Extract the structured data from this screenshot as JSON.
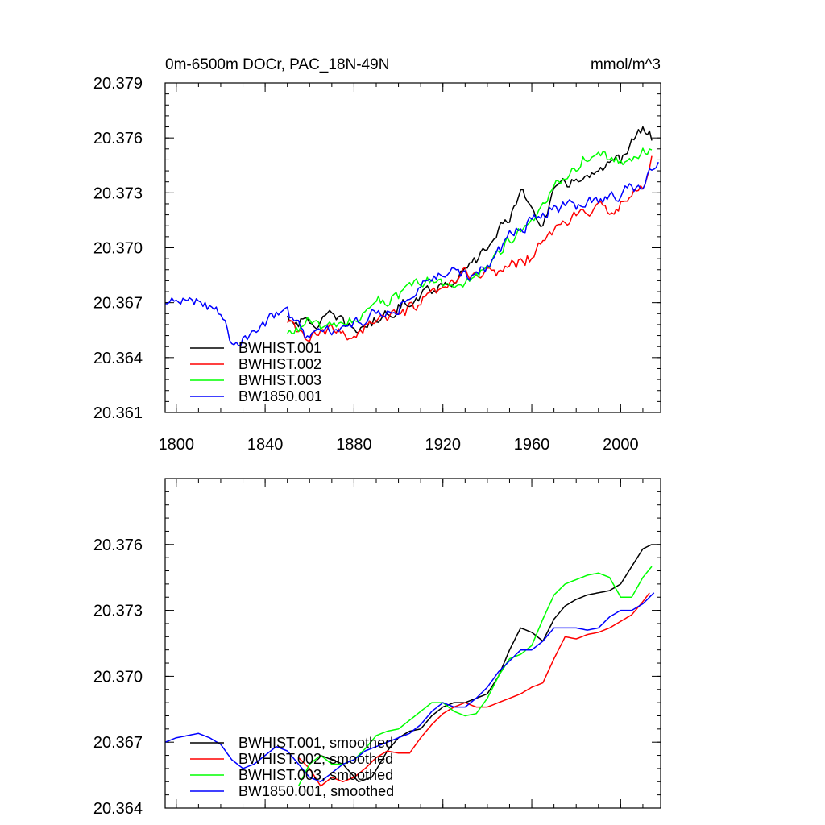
{
  "chart_data": [
    {
      "type": "line",
      "title_left": "0m-6500m DOCr, PAC_18N-49N",
      "title_right": "mmol/m^3",
      "xlim": [
        1795,
        2018
      ],
      "ylim": [
        20.361,
        20.379
      ],
      "x_ticks": [
        1800,
        1840,
        1880,
        1920,
        1960,
        2000
      ],
      "x_tick_labels": [
        "1800",
        "1840",
        "1880",
        "1920",
        "1960",
        "2000"
      ],
      "y_ticks": [
        20.361,
        20.364,
        20.367,
        20.37,
        20.373,
        20.376,
        20.379
      ],
      "y_tick_labels": [
        "20.361",
        "20.364",
        "20.367",
        "20.370",
        "20.373",
        "20.376",
        "20.379"
      ],
      "legend": [
        "BWHIST.001",
        "BWHIST.002",
        "BWHIST.003",
        "BW1850.001"
      ],
      "legend_position": "bottom-left",
      "series": [
        {
          "name": "BWHIST.001",
          "color": "#000000",
          "noise": 0.00055,
          "points": [
            [
              1850,
              20.3662
            ],
            [
              1860,
              20.3658
            ],
            [
              1870,
              20.3662
            ],
            [
              1880,
              20.3655
            ],
            [
              1890,
              20.366
            ],
            [
              1900,
              20.3668
            ],
            [
              1910,
              20.3675
            ],
            [
              1920,
              20.368
            ],
            [
              1930,
              20.3686
            ],
            [
              1940,
              20.37
            ],
            [
              1950,
              20.3718
            ],
            [
              1955,
              20.3728
            ],
            [
              1960,
              20.3725
            ],
            [
              1965,
              20.3712
            ],
            [
              1970,
              20.373
            ],
            [
              1980,
              20.3738
            ],
            [
              1990,
              20.374
            ],
            [
              2000,
              20.3748
            ],
            [
              2005,
              20.3758
            ],
            [
              2010,
              20.3765
            ],
            [
              2014,
              20.376
            ]
          ]
        },
        {
          "name": "BWHIST.002",
          "color": "#ff0000",
          "noise": 0.00055,
          "points": [
            [
              1850,
              20.3658
            ],
            [
              1860,
              20.365
            ],
            [
              1870,
              20.3655
            ],
            [
              1880,
              20.3652
            ],
            [
              1890,
              20.3662
            ],
            [
              1900,
              20.3662
            ],
            [
              1910,
              20.367
            ],
            [
              1920,
              20.3676
            ],
            [
              1930,
              20.3686
            ],
            [
              1940,
              20.3685
            ],
            [
              1950,
              20.369
            ],
            [
              1960,
              20.3695
            ],
            [
              1970,
              20.371
            ],
            [
              1980,
              20.3718
            ],
            [
              1990,
              20.372
            ],
            [
              2000,
              20.3724
            ],
            [
              2010,
              20.3732
            ],
            [
              2014,
              20.375
            ]
          ]
        },
        {
          "name": "BWHIST.003",
          "color": "#00ff00",
          "noise": 0.00055,
          "points": [
            [
              1850,
              20.3652
            ],
            [
              1860,
              20.366
            ],
            [
              1870,
              20.3655
            ],
            [
              1880,
              20.366
            ],
            [
              1890,
              20.3672
            ],
            [
              1900,
              20.3672
            ],
            [
              1910,
              20.3682
            ],
            [
              1920,
              20.368
            ],
            [
              1930,
              20.368
            ],
            [
              1940,
              20.369
            ],
            [
              1950,
              20.3705
            ],
            [
              1960,
              20.3712
            ],
            [
              1970,
              20.3735
            ],
            [
              1980,
              20.3745
            ],
            [
              1990,
              20.3755
            ],
            [
              2000,
              20.3745
            ],
            [
              2010,
              20.3752
            ],
            [
              2014,
              20.3755
            ]
          ]
        },
        {
          "name": "BW1850.001",
          "color": "#0000ff",
          "noise": 0.00055,
          "points": [
            [
              1795,
              20.3668
            ],
            [
              1800,
              20.367
            ],
            [
              1810,
              20.3672
            ],
            [
              1820,
              20.3665
            ],
            [
              1825,
              20.3648
            ],
            [
              1830,
              20.365
            ],
            [
              1840,
              20.366
            ],
            [
              1850,
              20.3665
            ],
            [
              1860,
              20.365
            ],
            [
              1870,
              20.3655
            ],
            [
              1880,
              20.3658
            ],
            [
              1890,
              20.3665
            ],
            [
              1900,
              20.3668
            ],
            [
              1910,
              20.3678
            ],
            [
              1920,
              20.3688
            ],
            [
              1930,
              20.3684
            ],
            [
              1940,
              20.369
            ],
            [
              1950,
              20.3706
            ],
            [
              1960,
              20.3715
            ],
            [
              1970,
              20.3722
            ],
            [
              1980,
              20.3722
            ],
            [
              1990,
              20.3726
            ],
            [
              2000,
              20.373
            ],
            [
              2010,
              20.3733
            ],
            [
              2017,
              20.3748
            ]
          ]
        }
      ]
    },
    {
      "type": "line",
      "xlim": [
        1795,
        2018
      ],
      "ylim": [
        20.364,
        20.379
      ],
      "x_ticks": [
        1800,
        1840,
        1880,
        1920,
        1960,
        2000
      ],
      "y_ticks": [
        20.364,
        20.367,
        20.37,
        20.373,
        20.376
      ],
      "y_tick_labels": [
        "20.364",
        "20.367",
        "20.370",
        "20.373",
        "20.376"
      ],
      "legend": [
        "BWHIST.001, smoothed",
        "BWHIST.002, smoothed",
        "BWHIST.003, smoothed",
        "BW1850.001, smoothed"
      ],
      "legend_position": "bottom-left",
      "series": [
        {
          "name": "BWHIST.001, smoothed",
          "color": "#000000",
          "noise": 0,
          "points": [
            [
              1865,
              20.3664
            ],
            [
              1875,
              20.366
            ],
            [
              1882,
              20.3652
            ],
            [
              1888,
              20.3654
            ],
            [
              1895,
              20.3666
            ],
            [
              1900,
              20.3672
            ],
            [
              1905,
              20.3675
            ],
            [
              1910,
              20.3676
            ],
            [
              1915,
              20.3682
            ],
            [
              1920,
              20.3686
            ],
            [
              1925,
              20.3688
            ],
            [
              1930,
              20.3688
            ],
            [
              1935,
              20.369
            ],
            [
              1940,
              20.3692
            ],
            [
              1945,
              20.37
            ],
            [
              1950,
              20.3712
            ],
            [
              1955,
              20.3722
            ],
            [
              1960,
              20.372
            ],
            [
              1965,
              20.3716
            ],
            [
              1970,
              20.3726
            ],
            [
              1975,
              20.3732
            ],
            [
              1980,
              20.3735
            ],
            [
              1985,
              20.3737
            ],
            [
              1990,
              20.3738
            ],
            [
              1995,
              20.3739
            ],
            [
              2000,
              20.3742
            ],
            [
              2005,
              20.375
            ],
            [
              2010,
              20.3758
            ],
            [
              2014,
              20.376
            ]
          ]
        },
        {
          "name": "BWHIST.002, smoothed",
          "color": "#ff0000",
          "noise": 0,
          "points": [
            [
              1855,
              20.3663
            ],
            [
              1860,
              20.3658
            ],
            [
              1865,
              20.365
            ],
            [
              1870,
              20.3654
            ],
            [
              1875,
              20.3652
            ],
            [
              1880,
              20.3654
            ],
            [
              1885,
              20.3658
            ],
            [
              1890,
              20.3663
            ],
            [
              1895,
              20.3666
            ],
            [
              1900,
              20.3665
            ],
            [
              1905,
              20.3665
            ],
            [
              1910,
              20.3672
            ],
            [
              1915,
              20.3678
            ],
            [
              1920,
              20.3683
            ],
            [
              1925,
              20.3686
            ],
            [
              1930,
              20.3688
            ],
            [
              1935,
              20.3686
            ],
            [
              1940,
              20.3686
            ],
            [
              1945,
              20.3688
            ],
            [
              1950,
              20.369
            ],
            [
              1955,
              20.3692
            ],
            [
              1960,
              20.3695
            ],
            [
              1965,
              20.3697
            ],
            [
              1970,
              20.3708
            ],
            [
              1975,
              20.3718
            ],
            [
              1980,
              20.3717
            ],
            [
              1985,
              20.3719
            ],
            [
              1990,
              20.372
            ],
            [
              1995,
              20.3722
            ],
            [
              2000,
              20.3725
            ],
            [
              2005,
              20.3728
            ],
            [
              2010,
              20.3734
            ],
            [
              2013,
              20.3738
            ]
          ]
        },
        {
          "name": "BWHIST.003, smoothed",
          "color": "#00ff00",
          "noise": 0,
          "points": [
            [
              1855,
              20.365
            ],
            [
              1860,
              20.366
            ],
            [
              1865,
              20.3664
            ],
            [
              1870,
              20.366
            ],
            [
              1875,
              20.366
            ],
            [
              1880,
              20.3662
            ],
            [
              1885,
              20.3667
            ],
            [
              1890,
              20.3673
            ],
            [
              1895,
              20.3675
            ],
            [
              1900,
              20.3676
            ],
            [
              1905,
              20.368
            ],
            [
              1910,
              20.3684
            ],
            [
              1915,
              20.3688
            ],
            [
              1920,
              20.3688
            ],
            [
              1925,
              20.3684
            ],
            [
              1930,
              20.3682
            ],
            [
              1935,
              20.3683
            ],
            [
              1940,
              20.369
            ],
            [
              1945,
              20.37
            ],
            [
              1950,
              20.3708
            ],
            [
              1955,
              20.371
            ],
            [
              1960,
              20.3714
            ],
            [
              1965,
              20.3726
            ],
            [
              1970,
              20.3737
            ],
            [
              1975,
              20.3742
            ],
            [
              1980,
              20.3744
            ],
            [
              1985,
              20.3746
            ],
            [
              1990,
              20.3747
            ],
            [
              1995,
              20.3745
            ],
            [
              2000,
              20.3736
            ],
            [
              2005,
              20.3736
            ],
            [
              2010,
              20.3745
            ],
            [
              2014,
              20.375
            ]
          ]
        },
        {
          "name": "BW1850.001, smoothed",
          "color": "#0000ff",
          "noise": 0,
          "points": [
            [
              1795,
              20.367
            ],
            [
              1800,
              20.3672
            ],
            [
              1805,
              20.3673
            ],
            [
              1810,
              20.3674
            ],
            [
              1815,
              20.3672
            ],
            [
              1820,
              20.3669
            ],
            [
              1825,
              20.3662
            ],
            [
              1830,
              20.3658
            ],
            [
              1835,
              20.366
            ],
            [
              1840,
              20.3664
            ],
            [
              1845,
              20.3668
            ],
            [
              1850,
              20.3666
            ],
            [
              1855,
              20.366
            ],
            [
              1860,
              20.3654
            ],
            [
              1865,
              20.3652
            ],
            [
              1870,
              20.3656
            ],
            [
              1875,
              20.366
            ],
            [
              1880,
              20.3662
            ],
            [
              1885,
              20.3666
            ],
            [
              1890,
              20.3668
            ],
            [
              1895,
              20.367
            ],
            [
              1900,
              20.3672
            ],
            [
              1905,
              20.3674
            ],
            [
              1910,
              20.3678
            ],
            [
              1915,
              20.3684
            ],
            [
              1920,
              20.3688
            ],
            [
              1925,
              20.3686
            ],
            [
              1930,
              20.3686
            ],
            [
              1935,
              20.369
            ],
            [
              1940,
              20.3695
            ],
            [
              1945,
              20.3702
            ],
            [
              1950,
              20.3707
            ],
            [
              1955,
              20.3712
            ],
            [
              1960,
              20.3712
            ],
            [
              1965,
              20.3716
            ],
            [
              1970,
              20.3722
            ],
            [
              1975,
              20.3722
            ],
            [
              1980,
              20.3722
            ],
            [
              1985,
              20.3721
            ],
            [
              1990,
              20.3722
            ],
            [
              1995,
              20.3727
            ],
            [
              2000,
              20.373
            ],
            [
              2005,
              20.373
            ],
            [
              2010,
              20.3733
            ],
            [
              2015,
              20.3738
            ]
          ]
        }
      ]
    }
  ]
}
